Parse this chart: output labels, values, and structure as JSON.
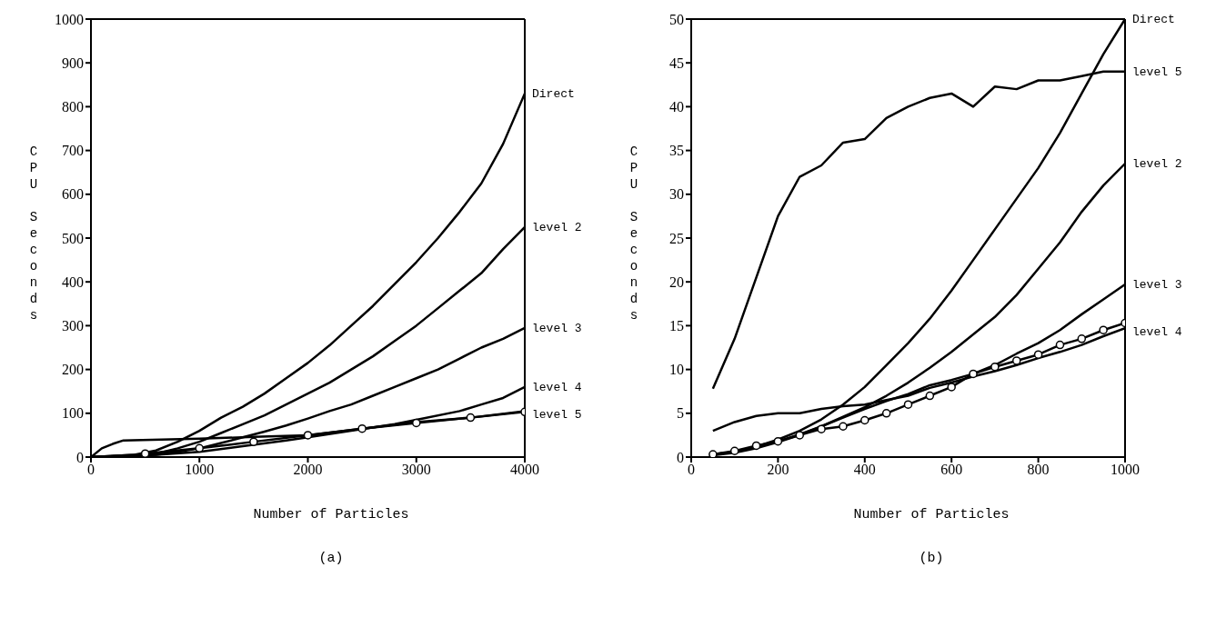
{
  "chart_data": [
    {
      "type": "line",
      "title": "(a)",
      "xlabel": "Number of Particles",
      "ylabel": "CPU Seconds",
      "xlim": [
        0,
        4000
      ],
      "xticks": [
        0,
        1000,
        2000,
        3000,
        4000
      ],
      "ylim": [
        0,
        1000
      ],
      "yticks": [
        0,
        100,
        200,
        300,
        400,
        500,
        600,
        700,
        800,
        900,
        1000
      ],
      "grid": false,
      "legend": false,
      "marker": "none",
      "line_style": "solid",
      "series": [
        {
          "name": "Direct",
          "color": "#000000",
          "x": [
            0,
            400,
            600,
            800,
            1000,
            1200,
            1400,
            1600,
            1800,
            2000,
            2200,
            2400,
            2600,
            2800,
            3000,
            3200,
            3400,
            3600,
            3800,
            4000
          ],
          "values": [
            0,
            5,
            15,
            35,
            60,
            90,
            115,
            145,
            180,
            215,
            255,
            300,
            345,
            395,
            445,
            500,
            560,
            625,
            715,
            830
          ]
        },
        {
          "name": "level 2",
          "color": "#000000",
          "x": [
            0,
            600,
            800,
            1000,
            1200,
            1400,
            1600,
            1800,
            2000,
            2200,
            2400,
            2600,
            2800,
            3000,
            3200,
            3400,
            3600,
            3800,
            4000
          ],
          "values": [
            0,
            8,
            20,
            35,
            55,
            75,
            95,
            120,
            145,
            170,
            200,
            230,
            265,
            300,
            340,
            380,
            420,
            475,
            525
          ]
        },
        {
          "name": "level 3",
          "color": "#000000",
          "x": [
            0,
            600,
            800,
            1000,
            1200,
            1400,
            1600,
            1800,
            2000,
            2200,
            2400,
            2600,
            2800,
            3000,
            3200,
            3400,
            3600,
            3800,
            4000
          ],
          "values": [
            0,
            5,
            12,
            20,
            32,
            45,
            58,
            72,
            88,
            105,
            120,
            140,
            160,
            180,
            200,
            225,
            250,
            270,
            295
          ]
        },
        {
          "name": "level 4",
          "color": "#000000",
          "x": [
            0,
            600,
            1000,
            1400,
            1800,
            2000,
            2400,
            2800,
            3000,
            3400,
            3600,
            3800,
            4000
          ],
          "values": [
            0,
            5,
            12,
            25,
            38,
            45,
            60,
            75,
            85,
            105,
            120,
            135,
            160
          ]
        },
        {
          "name": "level 5",
          "color": "#000000",
          "x": [
            0,
            100,
            200,
            300,
            1000,
            1500,
            2000,
            2500,
            3000,
            3500,
            4000
          ],
          "values": [
            0,
            20,
            30,
            38,
            42,
            46,
            50,
            65,
            80,
            90,
            105
          ]
        },
        {
          "color": "#000000",
          "marker": "circle",
          "x": [
            500,
            1000,
            1500,
            2000,
            2500,
            3000,
            3500,
            4000
          ],
          "values": [
            8,
            20,
            35,
            50,
            65,
            78,
            90,
            103
          ]
        }
      ]
    },
    {
      "type": "line",
      "title": "(b)",
      "xlabel": "Number of Particles",
      "ylabel": "CPU Seconds",
      "xlim": [
        0,
        1000
      ],
      "xticks": [
        0,
        200,
        400,
        600,
        800,
        1000
      ],
      "ylim": [
        0,
        50
      ],
      "yticks": [
        0,
        5,
        10,
        15,
        20,
        25,
        30,
        35,
        40,
        45,
        50
      ],
      "grid": false,
      "legend": false,
      "marker": "none",
      "line_style": "solid",
      "series": [
        {
          "name": "level 5",
          "color": "#000000",
          "x": [
            50,
            100,
            150,
            200,
            250,
            300,
            350,
            400,
            450,
            500,
            550,
            600,
            650,
            700,
            750,
            800,
            850,
            900,
            950,
            1000
          ],
          "values": [
            7.8,
            13.5,
            20.5,
            27.5,
            32,
            33.3,
            35.9,
            36.3,
            38.7,
            40,
            41,
            41.5,
            40,
            42.3,
            42,
            43,
            43,
            43.5,
            44,
            44
          ]
        },
        {
          "name": "Direct",
          "color": "#000000",
          "x": [
            50,
            100,
            150,
            200,
            250,
            300,
            350,
            400,
            450,
            500,
            550,
            600,
            650,
            700,
            750,
            800,
            850,
            900,
            950,
            1000
          ],
          "values": [
            0.3,
            0.6,
            1.2,
            2,
            3,
            4.3,
            6,
            8,
            10.5,
            13,
            15.8,
            19,
            22.5,
            26,
            29.5,
            33,
            37,
            41.5,
            46,
            50
          ]
        },
        {
          "name": "level 2",
          "color": "#000000",
          "x": [
            50,
            100,
            150,
            200,
            250,
            300,
            350,
            400,
            450,
            500,
            550,
            600,
            650,
            700,
            750,
            800,
            850,
            900,
            950,
            1000
          ],
          "values": [
            0.3,
            0.6,
            1.1,
            1.8,
            2.6,
            3.5,
            4.6,
            5.7,
            7,
            8.5,
            10.2,
            12,
            14,
            16,
            18.5,
            21.5,
            24.5,
            28,
            31,
            33.5
          ]
        },
        {
          "name": "level 3",
          "color": "#000000",
          "x": [
            50,
            100,
            150,
            200,
            250,
            300,
            350,
            400,
            450,
            500,
            550,
            600,
            650,
            700,
            750,
            800,
            850,
            900,
            950,
            1000
          ],
          "values": [
            0.2,
            0.5,
            1,
            1.7,
            2.5,
            3.5,
            4.5,
            5.5,
            6.4,
            7.2,
            8.2,
            8.8,
            9.5,
            10.5,
            11.8,
            13,
            14.5,
            16.3,
            18,
            19.7
          ]
        },
        {
          "name": "level 4",
          "color": "#000000",
          "x": [
            50,
            100,
            150,
            200,
            250,
            300,
            350,
            400,
            450,
            500,
            550,
            600,
            650,
            700,
            750,
            800,
            850,
            900,
            950,
            1000
          ],
          "values": [
            3,
            4,
            4.7,
            5,
            5,
            5.5,
            5.8,
            6,
            6.5,
            7,
            7.9,
            8.5,
            9.2,
            9.8,
            10.5,
            11.3,
            12,
            12.8,
            13.8,
            14.7
          ]
        },
        {
          "color": "#000000",
          "marker": "circle",
          "x": [
            50,
            100,
            150,
            200,
            250,
            300,
            350,
            400,
            450,
            500,
            550,
            600,
            650,
            700,
            750,
            800,
            850,
            900,
            950,
            1000
          ],
          "values": [
            0.3,
            0.7,
            1.3,
            1.8,
            2.5,
            3.2,
            3.5,
            4.2,
            5,
            6,
            7,
            8,
            9.5,
            10.3,
            11,
            11.7,
            12.8,
            13.5,
            14.5,
            15.3
          ]
        }
      ]
    }
  ]
}
